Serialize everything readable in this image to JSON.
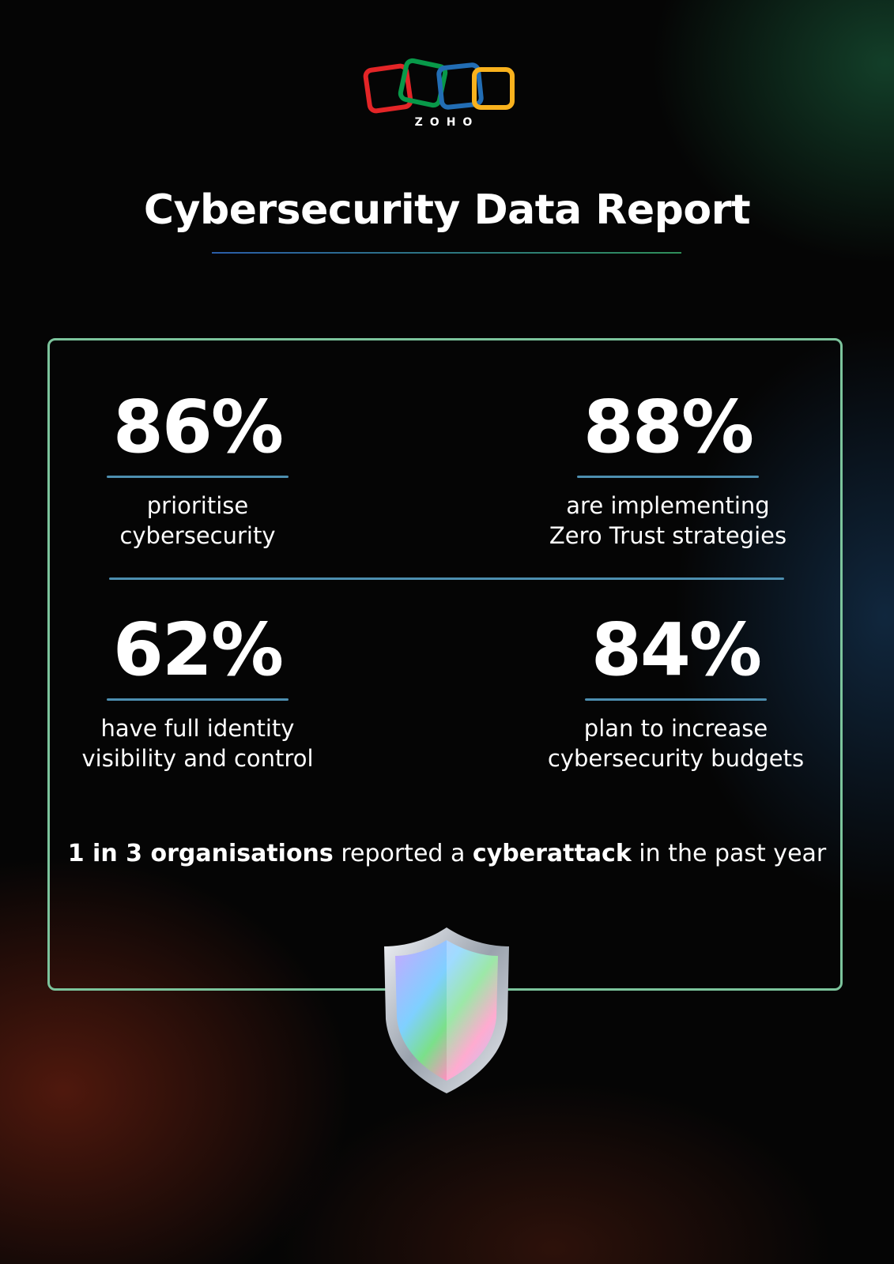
{
  "header": {
    "logo": "ZOHO",
    "title": "Cybersecurity Data Report"
  },
  "stats": [
    {
      "value": "86%",
      "lines": [
        "prioritise",
        "cybersecurity"
      ]
    },
    {
      "value": "88%",
      "lines": [
        "are implementing",
        "Zero Trust strategies"
      ]
    },
    {
      "value": "62%",
      "lines": [
        "have full identity",
        "visibility and control"
      ]
    },
    {
      "value": "84%",
      "lines": [
        "plan to increase",
        "cybersecurity budgets"
      ]
    }
  ],
  "footer": [
    {
      "text": "1 in 3 organisations",
      "bold": true
    },
    {
      "text": " reported a ",
      "bold": false
    },
    {
      "text": "cyberattack",
      "bold": true
    },
    {
      "text": " in the past year",
      "bold": false
    }
  ]
}
